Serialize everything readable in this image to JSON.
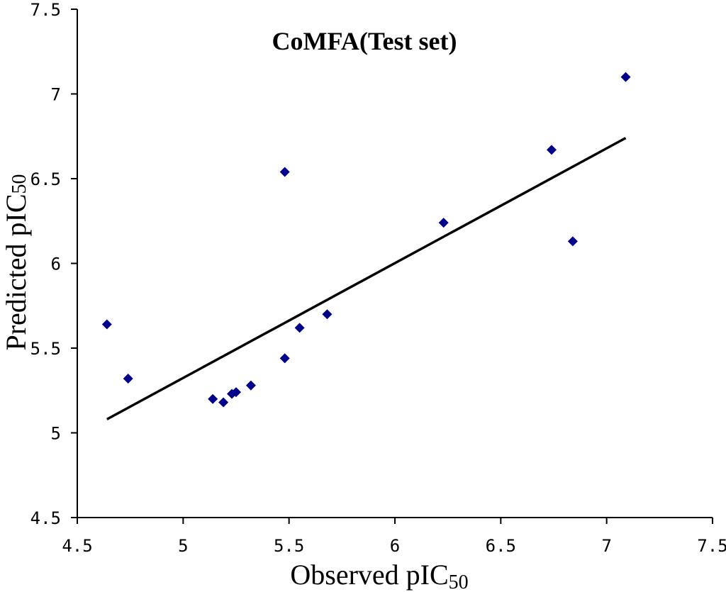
{
  "chart_data": {
    "type": "scatter",
    "title": "CoMFA(Test set)",
    "xlabel": {
      "main": "Observed pIC",
      "sub": "50"
    },
    "ylabel": {
      "main": "Predicted pIC",
      "sub": "50"
    },
    "xlim": [
      4.5,
      7.5
    ],
    "ylim": [
      4.5,
      7.5
    ],
    "xticks": [
      4.5,
      5,
      5.5,
      6,
      6.5,
      7,
      7.5
    ],
    "yticks": [
      4.5,
      5,
      5.5,
      6,
      6.5,
      7,
      7.5
    ],
    "xtick_labels": [
      "4.5",
      "5",
      "5.5",
      "6",
      "6.5",
      "7",
      "7.5"
    ],
    "ytick_labels": [
      "4.5",
      "5",
      "5.5",
      "6",
      "6.5",
      "7",
      "7.5"
    ],
    "grid": false,
    "series": [
      {
        "name": "Test set",
        "marker": "diamond",
        "color": "#00008b",
        "points": [
          [
            4.64,
            5.64
          ],
          [
            4.74,
            5.32
          ],
          [
            5.14,
            5.2
          ],
          [
            5.19,
            5.18
          ],
          [
            5.23,
            5.23
          ],
          [
            5.25,
            5.24
          ],
          [
            5.32,
            5.28
          ],
          [
            5.48,
            5.44
          ],
          [
            5.48,
            6.54
          ],
          [
            5.55,
            5.62
          ],
          [
            5.68,
            5.7
          ],
          [
            6.23,
            6.24
          ],
          [
            6.74,
            6.67
          ],
          [
            6.84,
            6.13
          ],
          [
            7.09,
            7.1
          ]
        ]
      }
    ],
    "trendline": {
      "x1": 4.64,
      "y1": 5.08,
      "x2": 7.09,
      "y2": 6.74,
      "color": "#000000"
    }
  }
}
